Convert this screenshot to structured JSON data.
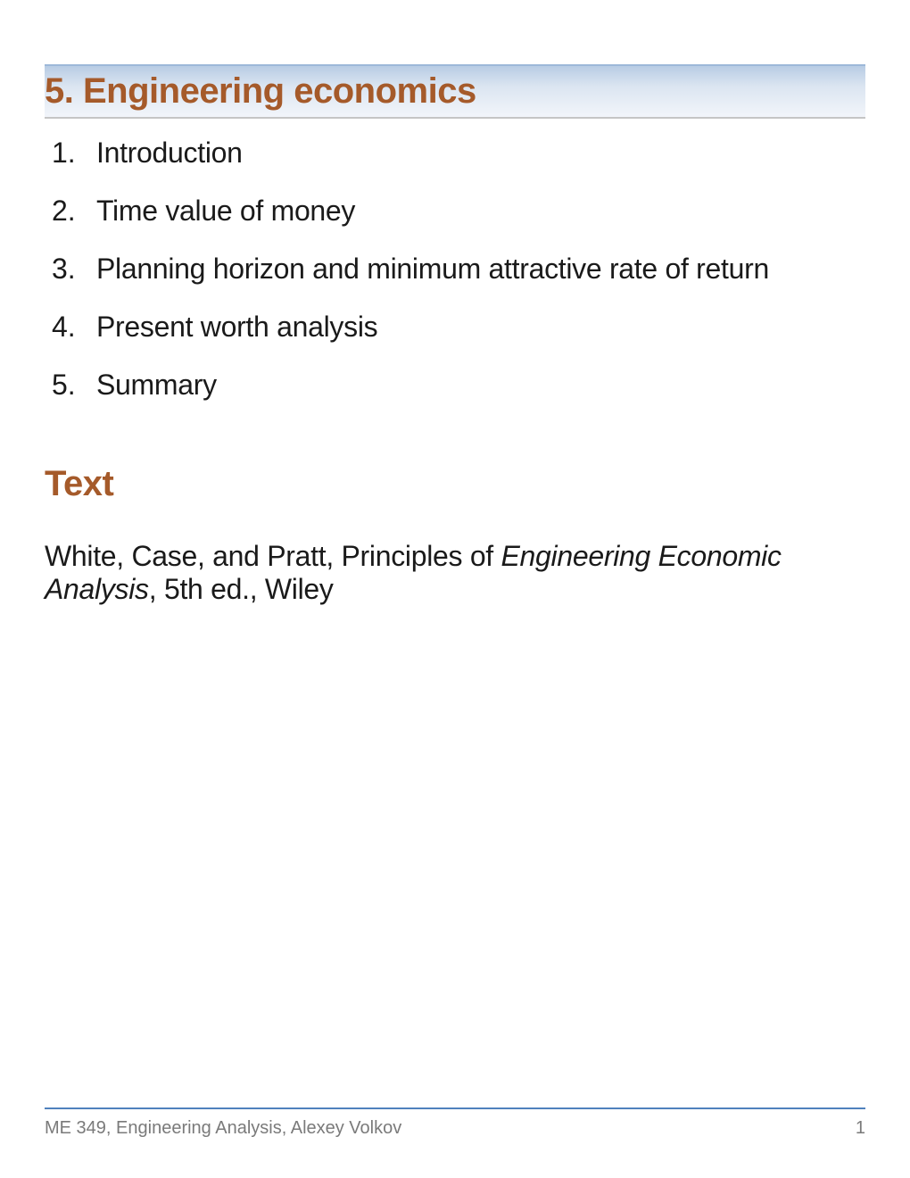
{
  "title": "5. Engineering economics",
  "outline": [
    {
      "num": "1.",
      "label": "Introduction"
    },
    {
      "num": "2.",
      "label": "Time value of money"
    },
    {
      "num": "3.",
      "label": "Planning horizon and minimum attractive rate of return"
    },
    {
      "num": "4.",
      "label": "Present worth analysis"
    },
    {
      "num": "5.",
      "label": "Summary"
    }
  ],
  "section_heading": "Text",
  "reference": {
    "prefix": "White, Case, and Pratt, Principles of ",
    "italic": "Engineering Economic Analysis",
    "suffix": ", 5th ed., Wiley"
  },
  "footer": {
    "text": "ME 349, Engineering Analysis, Alexey Volkov",
    "page": "1"
  },
  "colors": {
    "accent": "#a55a2a",
    "title_bar_top": "#b8cce4",
    "title_bar_bottom": "#f2f5fa",
    "footer_rule": "#4f81bd",
    "body_text": "#1a1a1a",
    "footer_text": "#7a7a7a"
  },
  "typography": {
    "title_fontsize": 40,
    "body_fontsize": 32,
    "footer_fontsize": 20,
    "title_weight": 700
  }
}
